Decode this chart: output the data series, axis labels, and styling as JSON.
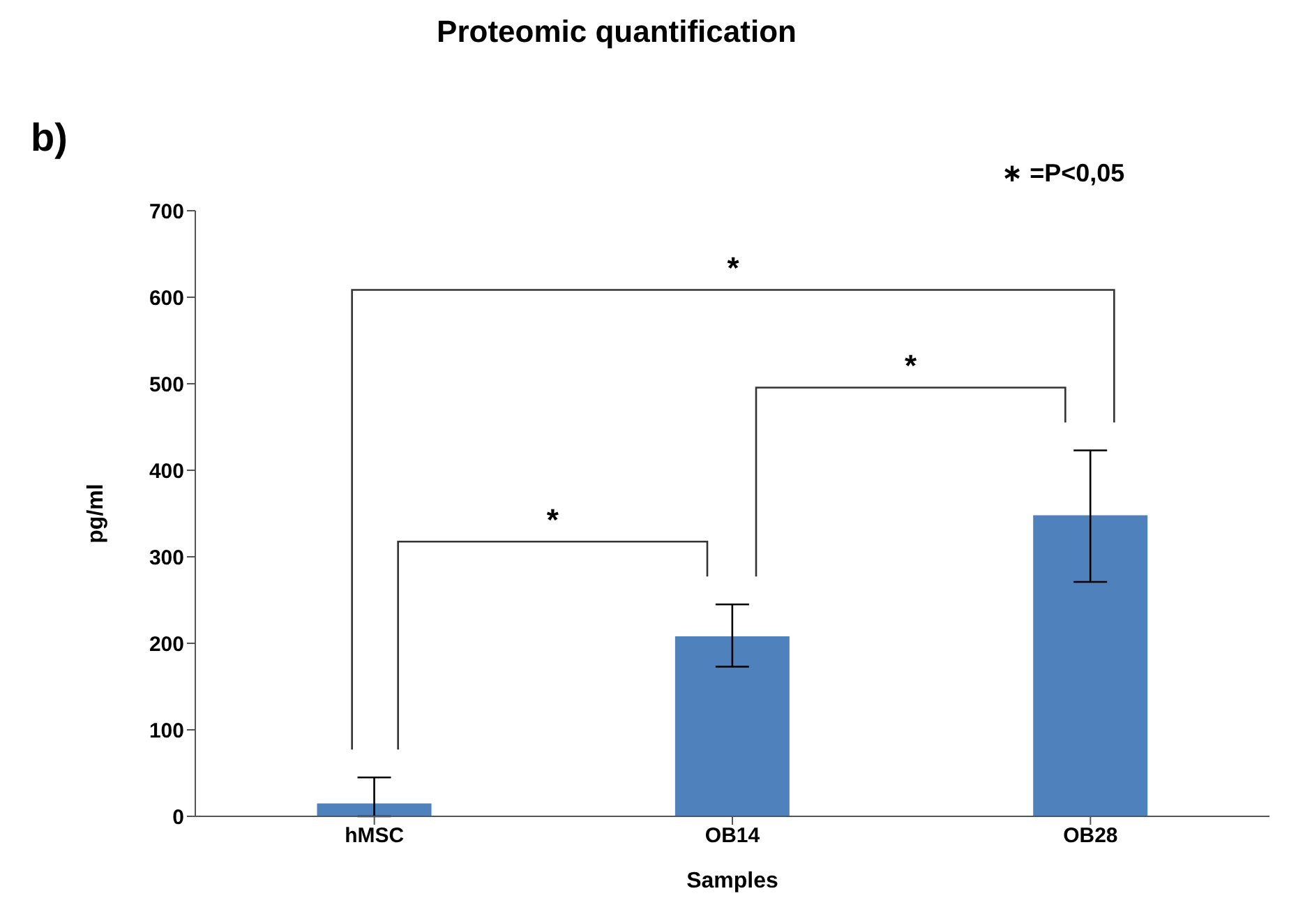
{
  "chart_data": {
    "type": "bar",
    "title": "Proteomic quantification",
    "xlabel": "Samples",
    "ylabel": "pg/ml",
    "categories": [
      "hMSC",
      "OB14",
      "OB28"
    ],
    "values": [
      15,
      208,
      348
    ],
    "errors": [
      [
        0,
        45
      ],
      [
        173,
        245
      ],
      [
        271,
        423
      ]
    ],
    "color": "#4f81bd",
    "ylim": [
      0,
      700
    ],
    "yticks": [
      0,
      100,
      200,
      300,
      400,
      500,
      600,
      700
    ],
    "annotations": [
      "b)",
      "∗ =P<0,05",
      "*",
      "*",
      "*"
    ]
  }
}
